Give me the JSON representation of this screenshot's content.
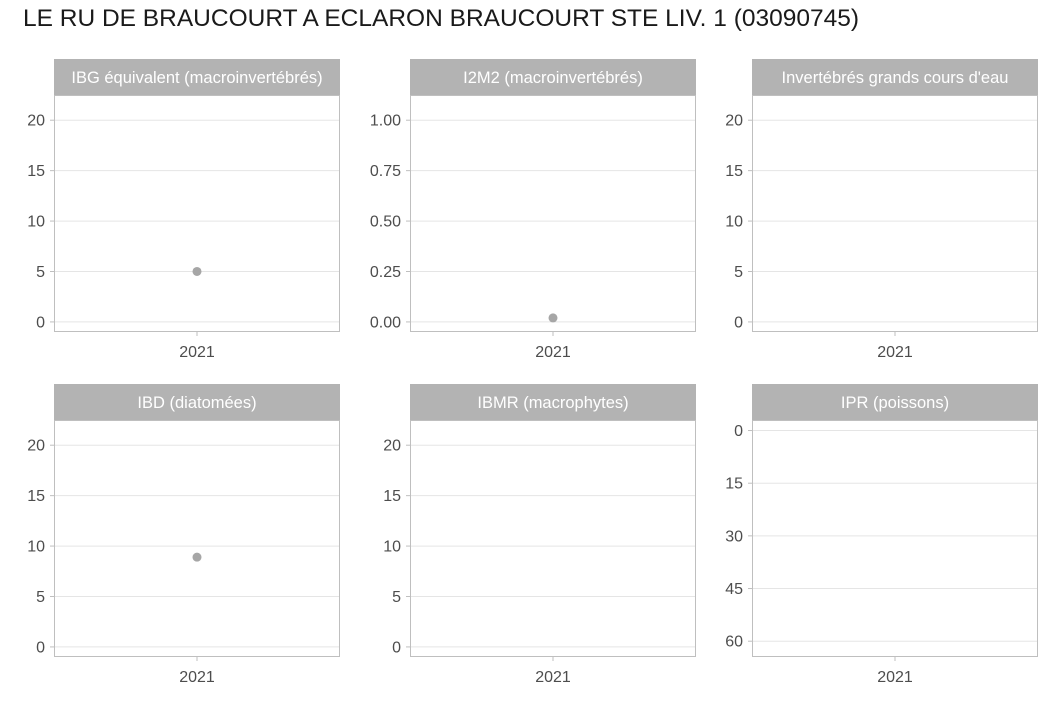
{
  "title": "LE RU DE BRAUCOURT A ECLARON BRAUCOURT STE LIV. 1 (03090745)",
  "colors": {
    "strip_fill": "#b3b3b3",
    "panel_border": "#bfbfbf",
    "grid": "#e5e5e5",
    "point": "#a6a6a6",
    "tick_text": "#4d4d4d"
  },
  "chart_data": [
    {
      "type": "scatter",
      "title": "IBG équivalent (macroinvertébrés)",
      "x": [
        "2021"
      ],
      "y_ticks": [
        0,
        5,
        10,
        15,
        20
      ],
      "ylim": [
        -1,
        22.5
      ],
      "y_reversed": false,
      "series": [
        {
          "x": [
            "2021"
          ],
          "y": [
            5
          ]
        }
      ],
      "grid": true
    },
    {
      "type": "scatter",
      "title": "I2M2 (macroinvertébrés)",
      "x": [
        "2021"
      ],
      "y_ticks": [
        "0.00",
        "0.25",
        "0.50",
        "0.75",
        "1.00"
      ],
      "ylim": [
        -0.05,
        1.125
      ],
      "y_reversed": false,
      "series": [
        {
          "x": [
            "2021"
          ],
          "y": [
            0.02
          ]
        }
      ],
      "grid": true
    },
    {
      "type": "scatter",
      "title": "Invertébrés grands cours d'eau",
      "x": [
        "2021"
      ],
      "y_ticks": [
        0,
        5,
        10,
        15,
        20
      ],
      "ylim": [
        -1,
        22.5
      ],
      "y_reversed": false,
      "series": [
        {
          "x": [],
          "y": []
        }
      ],
      "grid": true
    },
    {
      "type": "scatter",
      "title": "IBD (diatomées)",
      "x": [
        "2021"
      ],
      "y_ticks": [
        0,
        5,
        10,
        15,
        20
      ],
      "ylim": [
        -1,
        22.5
      ],
      "y_reversed": false,
      "series": [
        {
          "x": [
            "2021"
          ],
          "y": [
            8.9
          ]
        }
      ],
      "grid": true
    },
    {
      "type": "scatter",
      "title": "IBMR (macrophytes)",
      "x": [
        "2021"
      ],
      "y_ticks": [
        0,
        5,
        10,
        15,
        20
      ],
      "ylim": [
        -1,
        22.5
      ],
      "y_reversed": false,
      "series": [
        {
          "x": [],
          "y": []
        }
      ],
      "grid": true
    },
    {
      "type": "scatter",
      "title": "IPR (poissons)",
      "x": [
        "2021"
      ],
      "y_ticks": [
        0,
        15,
        30,
        45,
        60
      ],
      "ylim": [
        -3,
        64.5
      ],
      "y_reversed": true,
      "series": [
        {
          "x": [],
          "y": []
        }
      ],
      "grid": true
    }
  ]
}
